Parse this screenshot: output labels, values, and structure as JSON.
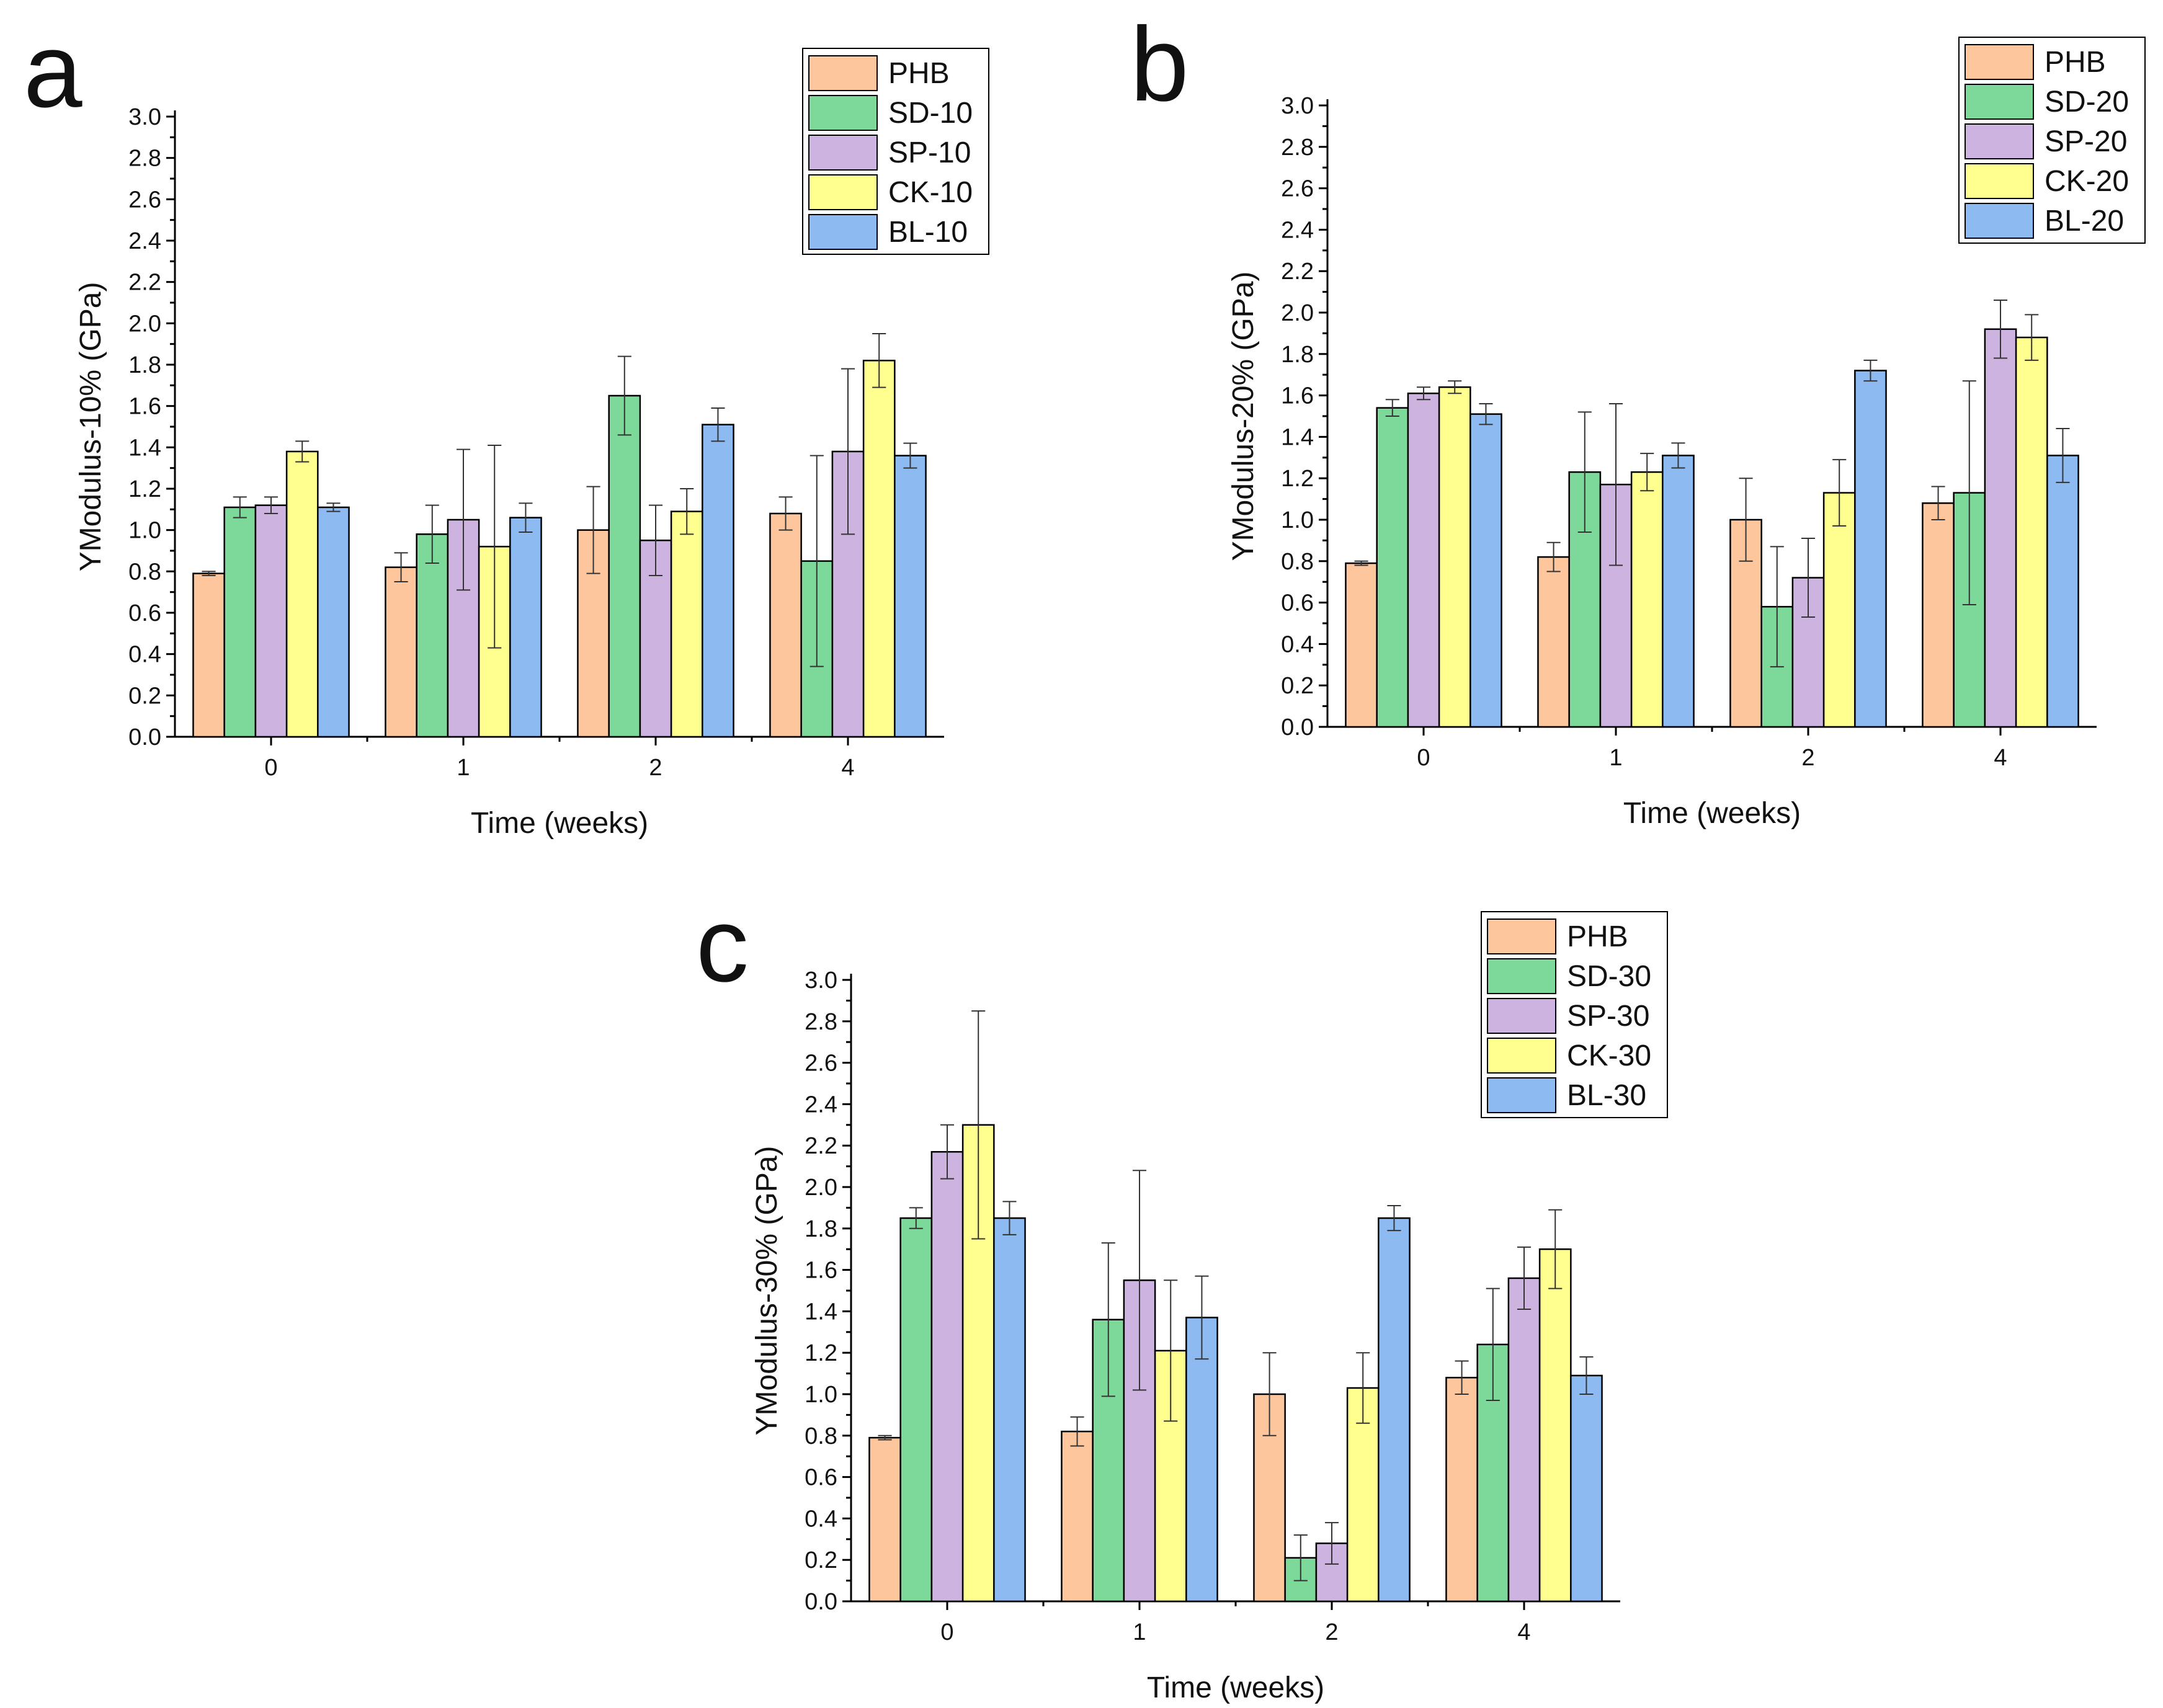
{
  "colors": {
    "PHB": "#FDC69C",
    "SD": "#7DD99A",
    "SP": "#CDB3DF",
    "CK": "#FFFF90",
    "BL": "#8EBAF2"
  },
  "chart_data": [
    {
      "type": "bar",
      "panel_label": "a",
      "xlabel": "Time (weeks)",
      "ylabel": "YModulus-10% (GPa)",
      "ylim": [
        0,
        3.0
      ],
      "yticks": [
        "0.0",
        "0.2",
        "0.4",
        "0.6",
        "0.8",
        "1.0",
        "1.2",
        "1.4",
        "1.6",
        "1.8",
        "2.0",
        "2.2",
        "2.4",
        "2.6",
        "2.8",
        "3.0"
      ],
      "categories": [
        "0",
        "1",
        "2",
        "4"
      ],
      "legend_position": "top-right",
      "grid": false,
      "series": [
        {
          "name": "PHB",
          "color_key": "PHB",
          "values": [
            0.79,
            0.82,
            1.0,
            1.08
          ],
          "errors": [
            0.01,
            0.07,
            0.21,
            0.08
          ]
        },
        {
          "name": "SD-10",
          "color_key": "SD",
          "values": [
            1.11,
            0.98,
            1.65,
            0.85
          ],
          "errors": [
            0.05,
            0.14,
            0.19,
            0.51
          ]
        },
        {
          "name": "SP-10",
          "color_key": "SP",
          "values": [
            1.12,
            1.05,
            0.95,
            1.38
          ],
          "errors": [
            0.04,
            0.34,
            0.17,
            0.4
          ]
        },
        {
          "name": "CK-10",
          "color_key": "CK",
          "values": [
            1.38,
            0.92,
            1.09,
            1.82
          ],
          "errors": [
            0.05,
            0.49,
            0.11,
            0.13
          ]
        },
        {
          "name": "BL-10",
          "color_key": "BL",
          "values": [
            1.11,
            1.06,
            1.51,
            1.36
          ],
          "errors": [
            0.02,
            0.07,
            0.08,
            0.06
          ]
        }
      ]
    },
    {
      "type": "bar",
      "panel_label": "b",
      "xlabel": "Time (weeks)",
      "ylabel": "YModulus-20% (GPa)",
      "ylim": [
        0,
        3.0
      ],
      "yticks": [
        "0.0",
        "0.2",
        "0.4",
        "0.6",
        "0.8",
        "1.0",
        "1.2",
        "1.4",
        "1.6",
        "1.8",
        "2.0",
        "2.2",
        "2.4",
        "2.6",
        "2.8",
        "3.0"
      ],
      "categories": [
        "0",
        "1",
        "2",
        "4"
      ],
      "legend_position": "top-right",
      "grid": false,
      "series": [
        {
          "name": "PHB",
          "color_key": "PHB",
          "values": [
            0.79,
            0.82,
            1.0,
            1.08
          ],
          "errors": [
            0.01,
            0.07,
            0.2,
            0.08
          ]
        },
        {
          "name": "SD-20",
          "color_key": "SD",
          "values": [
            1.54,
            1.23,
            0.58,
            1.13
          ],
          "errors": [
            0.04,
            0.29,
            0.29,
            0.54
          ]
        },
        {
          "name": "SP-20",
          "color_key": "SP",
          "values": [
            1.61,
            1.17,
            0.72,
            1.92
          ],
          "errors": [
            0.03,
            0.39,
            0.19,
            0.14
          ]
        },
        {
          "name": "CK-20",
          "color_key": "CK",
          "values": [
            1.64,
            1.23,
            1.13,
            1.88
          ],
          "errors": [
            0.03,
            0.09,
            0.16,
            0.11
          ]
        },
        {
          "name": "BL-20",
          "color_key": "BL",
          "values": [
            1.51,
            1.31,
            1.72,
            1.31
          ],
          "errors": [
            0.05,
            0.06,
            0.05,
            0.13
          ]
        }
      ]
    },
    {
      "type": "bar",
      "panel_label": "c",
      "xlabel": "Time (weeks)",
      "ylabel": "YModulus-30% (GPa)",
      "ylim": [
        0,
        3.0
      ],
      "yticks": [
        "0.0",
        "0.2",
        "0.4",
        "0.6",
        "0.8",
        "1.0",
        "1.2",
        "1.4",
        "1.6",
        "1.8",
        "2.0",
        "2.2",
        "2.4",
        "2.6",
        "2.8",
        "3.0"
      ],
      "categories": [
        "0",
        "1",
        "2",
        "4"
      ],
      "legend_position": "top-right",
      "grid": false,
      "series": [
        {
          "name": "PHB",
          "color_key": "PHB",
          "values": [
            0.79,
            0.82,
            1.0,
            1.08
          ],
          "errors": [
            0.01,
            0.07,
            0.2,
            0.08
          ]
        },
        {
          "name": "SD-30",
          "color_key": "SD",
          "values": [
            1.85,
            1.36,
            0.21,
            1.24
          ],
          "errors": [
            0.05,
            0.37,
            0.11,
            0.27
          ]
        },
        {
          "name": "SP-30",
          "color_key": "SP",
          "values": [
            2.17,
            1.55,
            0.28,
            1.56
          ],
          "errors": [
            0.13,
            0.53,
            0.1,
            0.15
          ]
        },
        {
          "name": "CK-30",
          "color_key": "CK",
          "values": [
            2.3,
            1.21,
            1.03,
            1.7
          ],
          "errors": [
            0.55,
            0.34,
            0.17,
            0.19
          ]
        },
        {
          "name": "BL-30",
          "color_key": "BL",
          "values": [
            1.85,
            1.37,
            1.85,
            1.09
          ],
          "errors": [
            0.08,
            0.2,
            0.06,
            0.09
          ]
        }
      ]
    }
  ]
}
